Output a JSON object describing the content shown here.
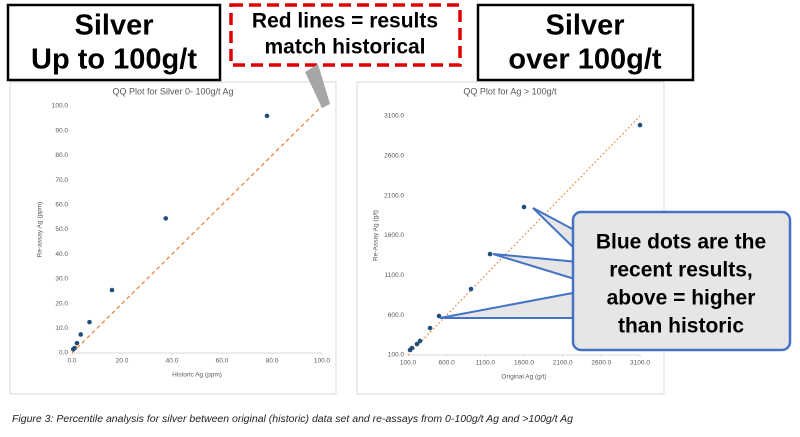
{
  "chart_data": [
    {
      "type": "scatter",
      "title": "QQ Plot for Silver 0- 100g/t Ag",
      "x_label": "Historic Ag (ppm)",
      "y_label": "Re-assay Ag (ppm)",
      "x": [
        0.5,
        1,
        2,
        3.5,
        7,
        16,
        37.5,
        78
      ],
      "series": [
        {
          "color": "#1f4e79",
          "values": [
            1.5,
            2,
            4,
            7.5,
            12.5,
            25.5,
            54.5,
            96
          ]
        }
      ],
      "xlim": [
        0,
        100
      ],
      "ylim": [
        0,
        100
      ],
      "xticks": [
        {
          "value": 0,
          "label": "0.0"
        },
        {
          "value": 20,
          "label": "20.0"
        },
        {
          "value": 40,
          "label": "40.0"
        },
        {
          "value": 60,
          "label": "60.0"
        },
        {
          "value": 80,
          "label": "80.0"
        },
        {
          "value": 100,
          "label": "100.0"
        }
      ],
      "yticks": [
        {
          "value": 0,
          "label": "0.0"
        },
        {
          "value": 10,
          "label": "10.0"
        },
        {
          "value": 20,
          "label": "20.0"
        },
        {
          "value": 30,
          "label": "30.0"
        },
        {
          "value": 40,
          "label": "40.0"
        },
        {
          "value": 50,
          "label": "50.0"
        },
        {
          "value": 60,
          "label": "60.0"
        },
        {
          "value": 70,
          "label": "70.0"
        },
        {
          "value": 80,
          "label": "80.0"
        },
        {
          "value": 90,
          "label": "90.0"
        },
        {
          "value": 100,
          "label": "100.0"
        }
      ],
      "grid": false,
      "reference_line_color": "#ed7d31",
      "reference_line_style": "dashed"
    },
    {
      "type": "scatter",
      "title": "QQ Plot for Ag > 100g/t",
      "x_label": "Original Ag (g/t)",
      "y_label": "Re-Assay Ag (g/t)",
      "x": [
        126,
        152,
        216,
        255,
        385,
        501,
        915,
        1161,
        1600,
        3100
      ],
      "series": [
        {
          "color": "#1f4e79",
          "values": [
            163,
            188,
            238,
            276,
            439,
            589,
            928,
            1367,
            1957,
            2986
          ]
        }
      ],
      "xlim": [
        100,
        3100
      ],
      "ylim": [
        100,
        3100
      ],
      "xticks": [
        {
          "value": 100,
          "label": "100.0"
        },
        {
          "value": 600,
          "label": "600.0"
        },
        {
          "value": 1100,
          "label": "1100.0"
        },
        {
          "value": 1600,
          "label": "1600.0"
        },
        {
          "value": 2100,
          "label": "2100.0"
        },
        {
          "value": 2600,
          "label": "2600.0"
        },
        {
          "value": 3100,
          "label": "3100.0"
        }
      ],
      "yticks": [
        {
          "value": 100,
          "label": "100.0"
        },
        {
          "value": 600,
          "label": "600.0"
        },
        {
          "value": 1100,
          "label": "1100.0"
        },
        {
          "value": 1600,
          "label": "1600.0"
        },
        {
          "value": 2100,
          "label": "2100.0"
        },
        {
          "value": 2600,
          "label": "2600.0"
        },
        {
          "value": 3100,
          "label": "3100.0"
        }
      ],
      "grid": false,
      "reference_line_color": "#ed7d31",
      "reference_line_style": "dotted"
    }
  ],
  "headings": [
    [
      "Silver",
      "Up to 100g/t"
    ],
    [
      "Silver",
      "over 100g/t"
    ]
  ],
  "red_note": [
    "Red lines = results",
    "match historical"
  ],
  "blue_note": [
    "Blue dots are the",
    "recent results,",
    "above = higher",
    "than historic"
  ],
  "caption": "Figure 3: Percentile analysis for silver between original (historic) data set and re-assays from 0-100g/t Ag and >100g/t Ag"
}
